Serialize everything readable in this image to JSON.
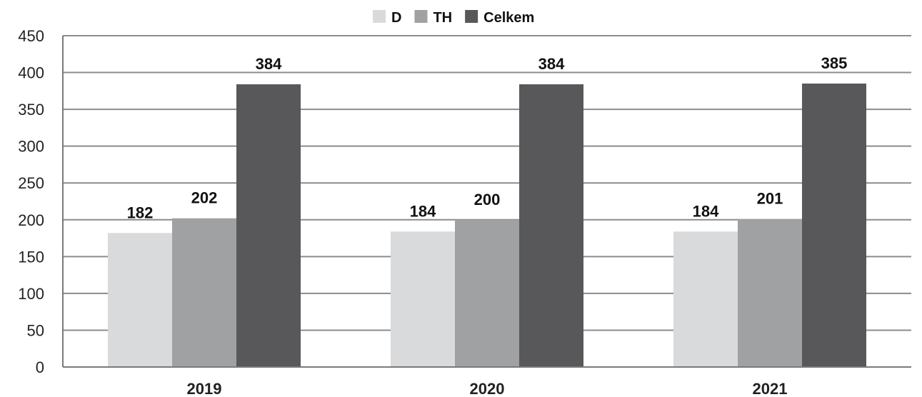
{
  "chart_data": {
    "type": "bar",
    "title": "",
    "xlabel": "",
    "ylabel": "",
    "categories": [
      "2019",
      "2020",
      "2021"
    ],
    "series": [
      {
        "name": "D",
        "values": [
          182,
          184,
          184
        ],
        "color": "#d9dadb"
      },
      {
        "name": "TH",
        "values": [
          202,
          200,
          201
        ],
        "color": "#a0a1a3"
      },
      {
        "name": "Celkem",
        "values": [
          384,
          384,
          385
        ],
        "color": "#58585a"
      }
    ],
    "ylim": [
      0,
      450
    ],
    "yticks": [
      0,
      50,
      100,
      150,
      200,
      250,
      300,
      350,
      400,
      450
    ],
    "grid": true,
    "legend": "top-center",
    "data_labels": true
  }
}
